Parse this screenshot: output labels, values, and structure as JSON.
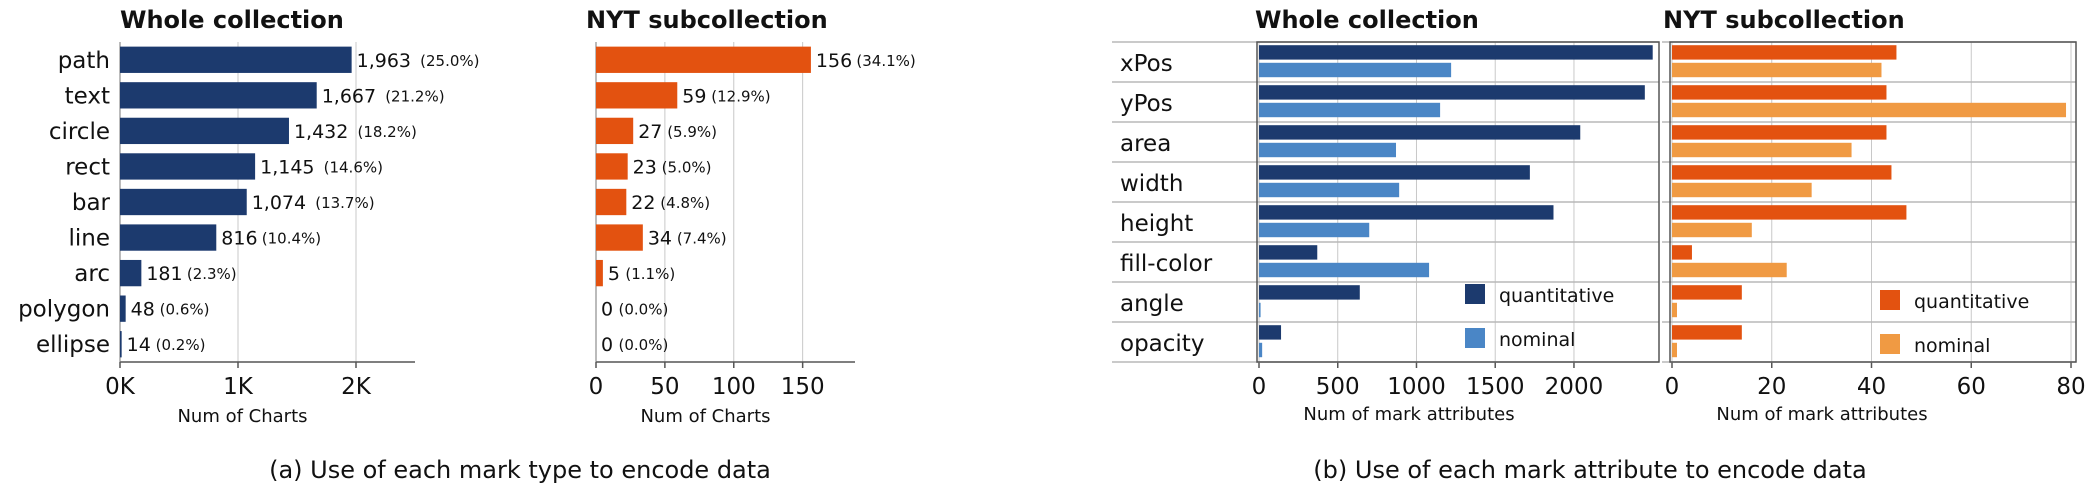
{
  "colors": {
    "whole": "#1c3a6e",
    "whole_light": "#4a86c6",
    "nyt": "#e35210",
    "nyt_light": "#f09a43"
  },
  "chart_data": [
    {
      "type": "bar",
      "orientation": "horizontal",
      "title": "Whole collection",
      "xlabel": "Num of Charts",
      "categories": [
        "path",
        "text",
        "circle",
        "rect",
        "bar",
        "line",
        "arc",
        "polygon",
        "ellipse"
      ],
      "values": [
        1963,
        1667,
        1432,
        1145,
        1074,
        816,
        181,
        48,
        14
      ],
      "value_labels": [
        "1,963",
        "1,667",
        "1,432",
        "1,145",
        "1,074",
        "816",
        "181",
        "48",
        "14"
      ],
      "percent_labels": [
        "(25.0%)",
        "(21.2%)",
        "(18.2%)",
        "(14.6%)",
        "(13.7%)",
        "(10.4%)",
        "(2.3%)",
        "(0.6%)",
        "(0.2%)"
      ],
      "xticks": [
        0,
        1000,
        2000
      ],
      "xtick_labels": [
        "0K",
        "1K",
        "2K"
      ],
      "xlim": [
        0,
        2500
      ]
    },
    {
      "type": "bar",
      "orientation": "horizontal",
      "title": "NYT subcollection",
      "xlabel": "Num of Charts",
      "categories": [
        "path",
        "text",
        "circle",
        "rect",
        "bar",
        "line",
        "arc",
        "polygon",
        "ellipse"
      ],
      "values": [
        156,
        59,
        27,
        23,
        22,
        34,
        5,
        0,
        0
      ],
      "value_labels": [
        "156",
        "59",
        "27",
        "23",
        "22",
        "34",
        "5",
        "0",
        "0"
      ],
      "percent_labels": [
        "(34.1%)",
        "(12.9%)",
        "(5.9%)",
        "(5.0%)",
        "(4.8%)",
        "(7.4%)",
        "(1.1%)",
        "(0.0%)",
        "(0.0%)"
      ],
      "xticks": [
        0,
        50,
        100,
        150
      ],
      "xtick_labels": [
        "0",
        "50",
        "100",
        "150"
      ],
      "xlim": [
        0,
        188
      ]
    },
    {
      "type": "bar",
      "orientation": "horizontal",
      "title": "Whole collection",
      "xlabel": "Num of mark attributes",
      "categories": [
        "xPos",
        "yPos",
        "area",
        "width",
        "height",
        "fill-color",
        "angle",
        "opacity"
      ],
      "series": [
        {
          "name": "quantitative",
          "values": [
            2500,
            2450,
            2040,
            1720,
            1870,
            370,
            640,
            140
          ]
        },
        {
          "name": "nominal",
          "values": [
            1220,
            1150,
            870,
            890,
            700,
            1080,
            10,
            20
          ]
        }
      ],
      "xticks": [
        0,
        500,
        1000,
        1500,
        2000
      ],
      "xtick_labels": [
        "0",
        "500",
        "1000",
        "1500",
        "2000"
      ],
      "xlim": [
        0,
        2540
      ],
      "legend": "bottom-right"
    },
    {
      "type": "bar",
      "orientation": "horizontal",
      "title": "NYT subcollection",
      "xlabel": "Num of mark attributes",
      "categories": [
        "xPos",
        "yPos",
        "area",
        "width",
        "height",
        "fill-color",
        "angle",
        "opacity"
      ],
      "series": [
        {
          "name": "quantitative",
          "values": [
            45,
            43,
            43,
            44,
            47,
            4,
            14,
            14
          ]
        },
        {
          "name": "nominal",
          "values": [
            42,
            79,
            36,
            28,
            16,
            23,
            1,
            1
          ]
        }
      ],
      "xticks": [
        0,
        20,
        40,
        60,
        80
      ],
      "xtick_labels": [
        "0",
        "20",
        "40",
        "60",
        "80"
      ],
      "xlim": [
        0,
        81
      ],
      "legend": "bottom-right"
    }
  ],
  "captions": {
    "a": "(a) Use of each mark type to encode data",
    "b": "(b) Use of each mark attribute to encode data"
  }
}
